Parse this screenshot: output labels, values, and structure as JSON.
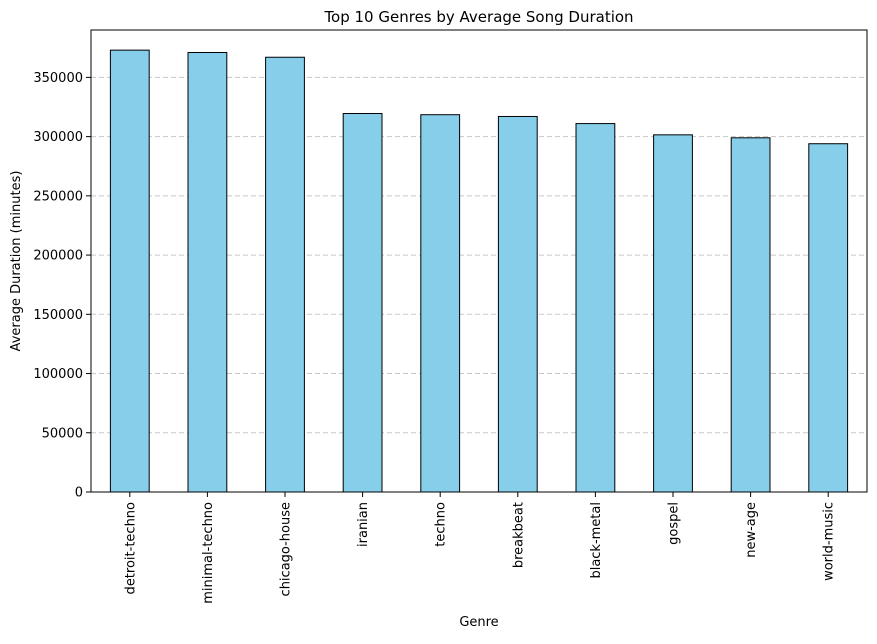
{
  "chart_data": {
    "type": "bar",
    "title": "Top 10 Genres by Average Song Duration",
    "xlabel": "Genre",
    "ylabel": "Average Duration (minutes)",
    "categories": [
      "detroit-techno",
      "minimal-techno",
      "chicago-house",
      "iranian",
      "techno",
      "breakbeat",
      "black-metal",
      "gospel",
      "new-age",
      "world-music"
    ],
    "values": [
      373000,
      371000,
      367000,
      319500,
      318500,
      317000,
      311000,
      301500,
      299000,
      294000
    ],
    "ylim": [
      0,
      390000
    ],
    "yticks": [
      0,
      50000,
      100000,
      150000,
      200000,
      250000,
      300000,
      350000
    ],
    "grid": {
      "axis": "y",
      "style": "dashed"
    },
    "colors": {
      "bar_fill": "#87CEEB",
      "bar_edge": "#000000",
      "grid": "#c8c8c8"
    }
  }
}
